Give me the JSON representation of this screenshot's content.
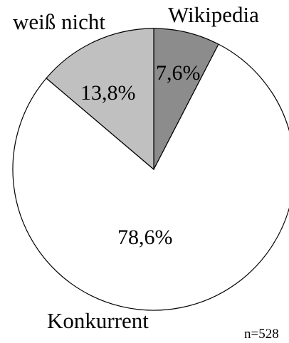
{
  "chart_data": {
    "type": "pie",
    "title": "",
    "categories": [
      "Wikipedia",
      "Konkurrent",
      "weiß nicht"
    ],
    "values": [
      7.6,
      78.6,
      13.8
    ],
    "value_labels": [
      "7,6%",
      "78,6%",
      "13,8%"
    ],
    "colors": [
      "#8c8c8c",
      "#ffffff",
      "#c0c0c0"
    ],
    "start_angle_deg": 0,
    "direction": "clockwise",
    "legend": "none",
    "annotation": "n=528"
  }
}
